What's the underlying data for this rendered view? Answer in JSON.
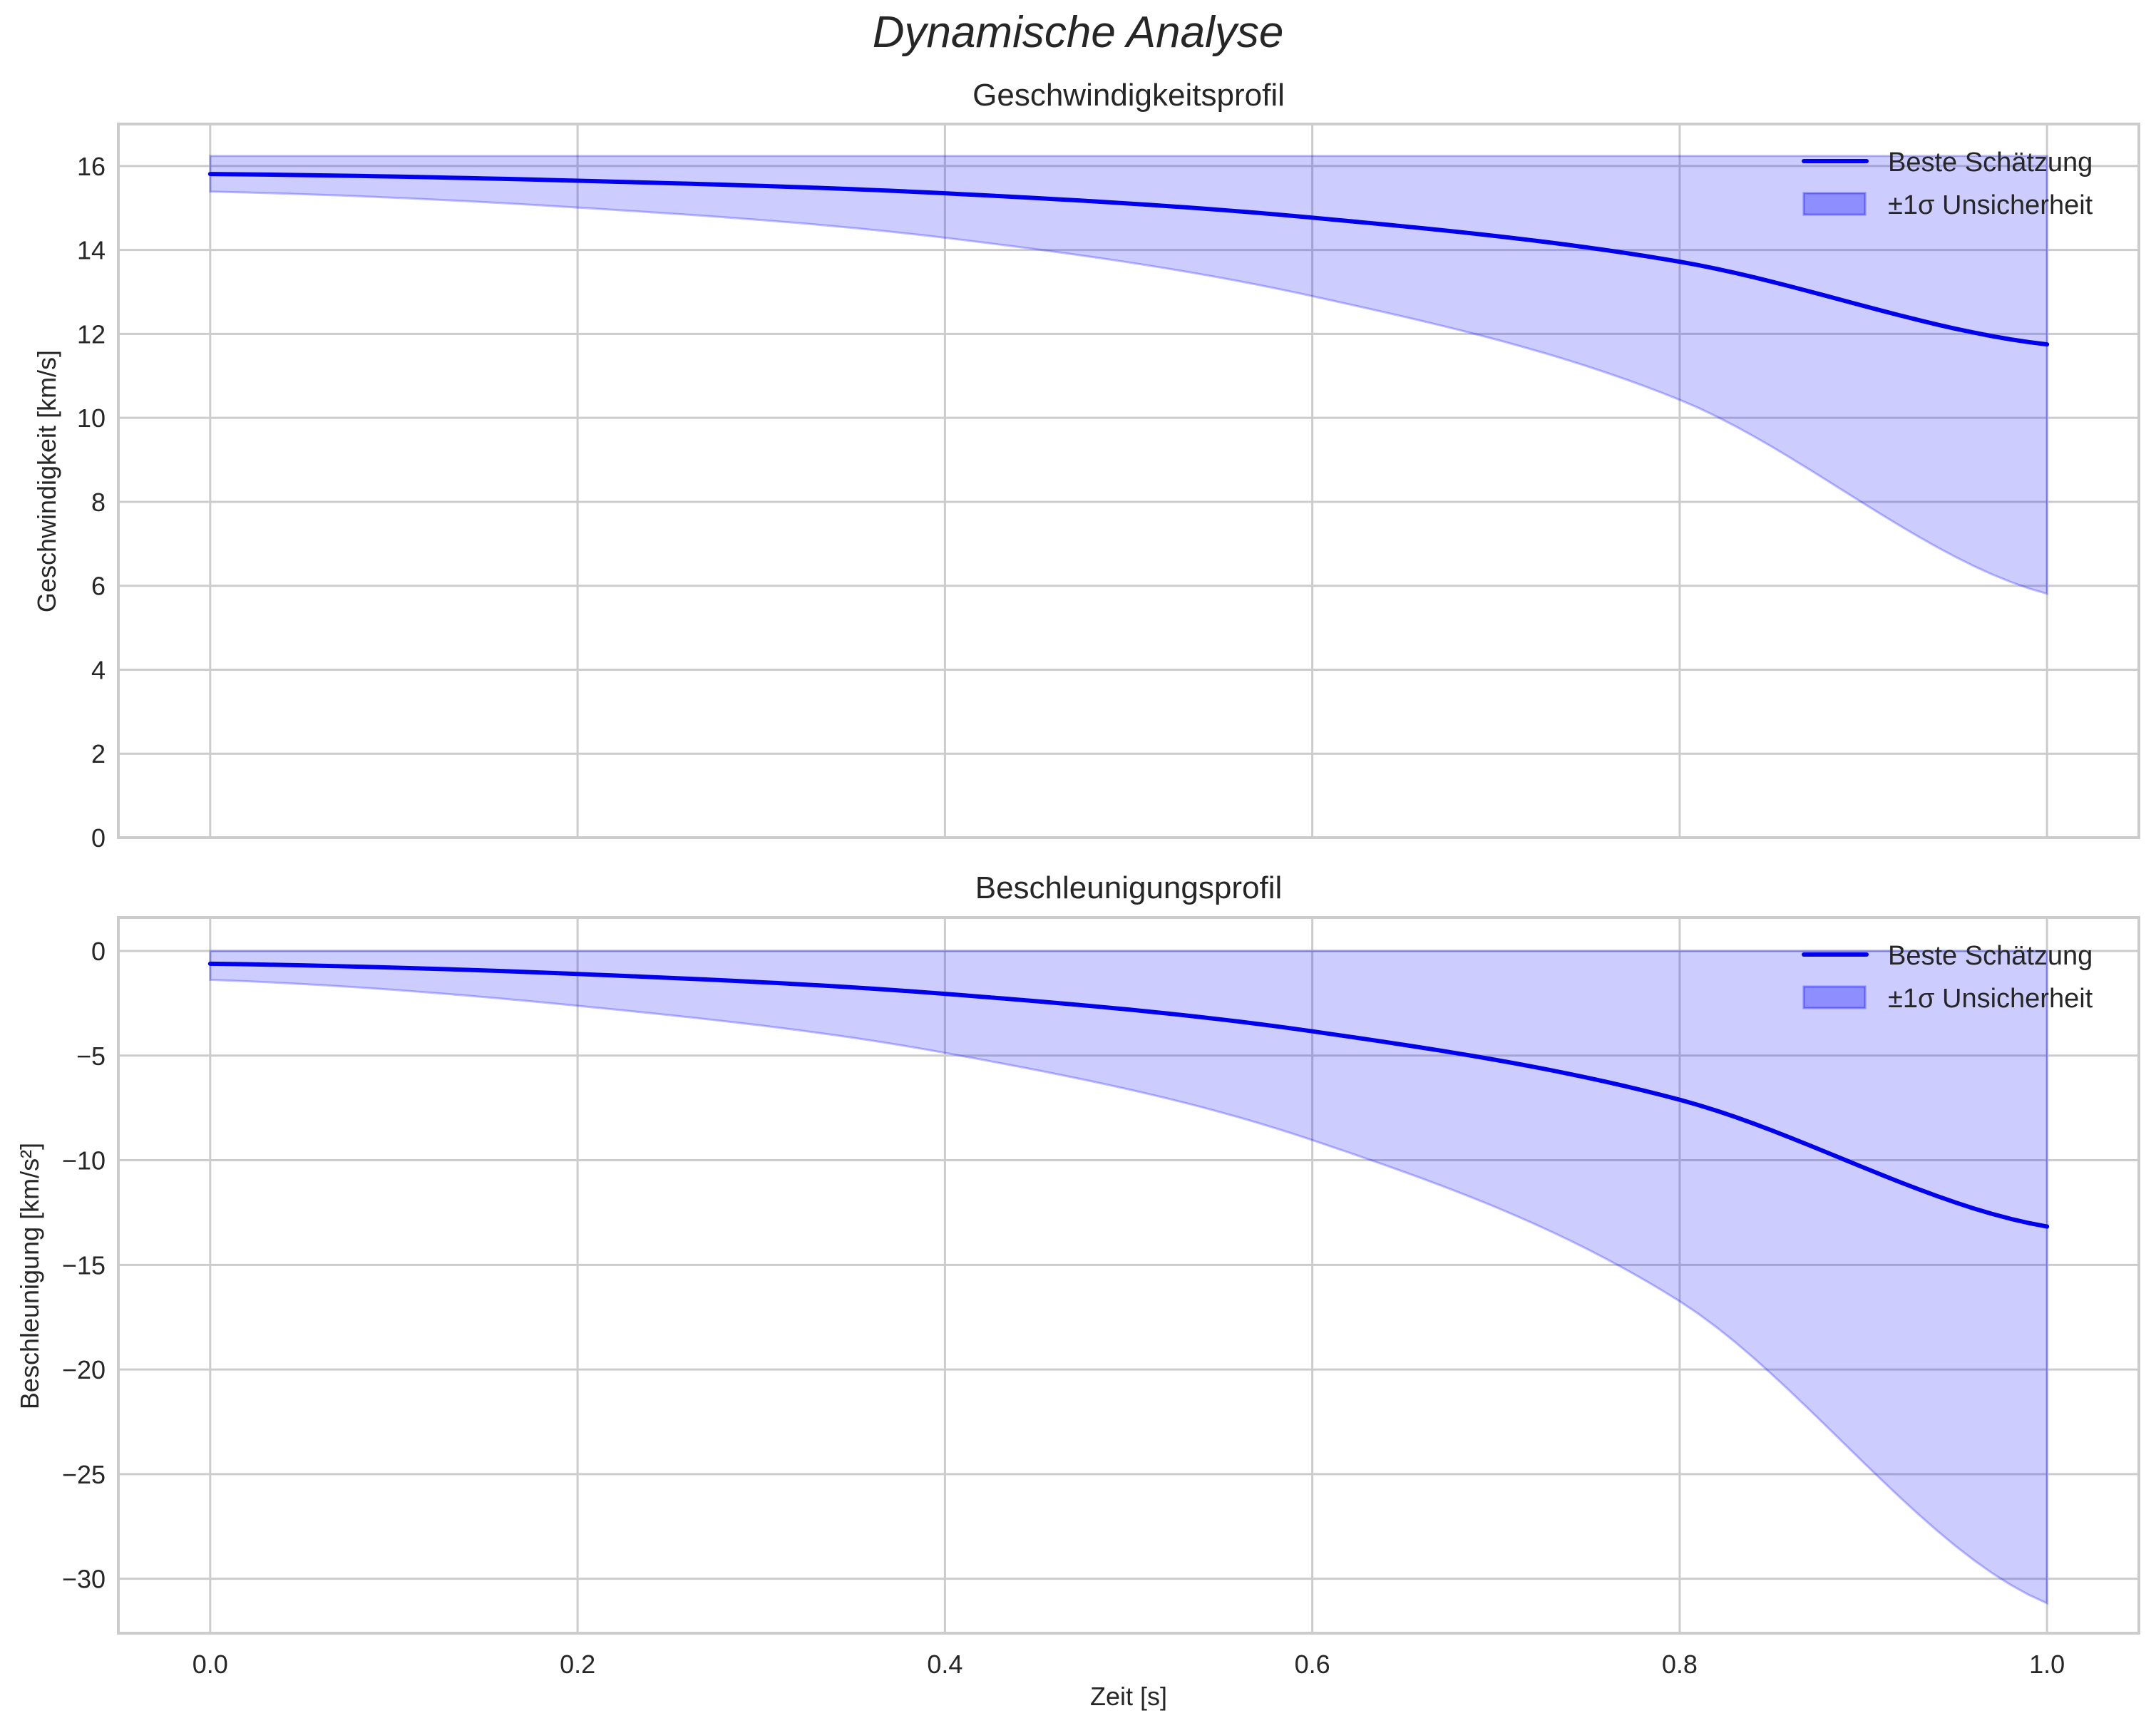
{
  "figure": {
    "suptitle": "Dynamische Analyse",
    "xlabel": "Zeit [s]",
    "colors": {
      "line": "#0000ee",
      "band_fill": "#0000ff",
      "band_alpha": 0.2,
      "grid": "#cccccc",
      "text": "#262626"
    }
  },
  "chart_data": [
    {
      "type": "line",
      "title": "Geschwindigkeitsprofil",
      "xlabel": "",
      "ylabel": "Geschwindigkeit [km/s]",
      "xlim": [
        -0.05,
        1.05
      ],
      "ylim": [
        0,
        17
      ],
      "xticks": [
        "0.0",
        "0.2",
        "0.4",
        "0.6",
        "0.8",
        "1.0"
      ],
      "yticks": [
        "0",
        "2",
        "4",
        "6",
        "8",
        "10",
        "12",
        "14",
        "16"
      ],
      "ytick_values": [
        0,
        2,
        4,
        6,
        8,
        10,
        12,
        14,
        16
      ],
      "grid": true,
      "legend": {
        "position": "upper right",
        "entries": [
          "Beste Schätzung",
          "±1σ Unsicherheit"
        ]
      },
      "x": [
        0.0,
        0.2,
        0.4,
        0.6,
        0.8,
        1.0
      ],
      "series": [
        {
          "name": "Beste Schätzung",
          "kind": "line",
          "values": [
            15.81,
            15.65,
            15.35,
            14.77,
            13.72,
            11.75
          ]
        },
        {
          "name": "±1σ Unsicherheit",
          "kind": "band",
          "lower": [
            15.39,
            15.01,
            14.29,
            12.9,
            10.43,
            5.81
          ],
          "upper": [
            16.24,
            16.24,
            16.24,
            16.24,
            16.24,
            16.24
          ]
        }
      ]
    },
    {
      "type": "line",
      "title": "Beschleunigungsprofil",
      "xlabel": "Zeit [s]",
      "ylabel": "Beschleunigung [km/s²]",
      "xlim": [
        -0.05,
        1.05
      ],
      "ylim": [
        -32.6,
        1.6
      ],
      "xticks": [
        "0.0",
        "0.2",
        "0.4",
        "0.6",
        "0.8",
        "1.0"
      ],
      "yticks": [
        "0",
        "−5",
        "−10",
        "−15",
        "−20",
        "−25",
        "−30"
      ],
      "ytick_values": [
        0,
        -5,
        -10,
        -15,
        -20,
        -25,
        -30
      ],
      "grid": true,
      "legend": {
        "position": "upper right",
        "entries": [
          "Beste Schätzung",
          "±1σ Unsicherheit"
        ]
      },
      "x": [
        0.0,
        0.2,
        0.4,
        0.6,
        0.8,
        1.0
      ],
      "series": [
        {
          "name": "Beste Schätzung",
          "kind": "line",
          "values": [
            -0.61,
            -1.1,
            -2.05,
            -3.84,
            -7.11,
            -13.17
          ]
        },
        {
          "name": "±1σ Unsicherheit",
          "kind": "band",
          "lower": [
            -1.38,
            -2.62,
            -4.87,
            -9.04,
            -16.74,
            -31.17
          ],
          "upper": [
            0,
            0,
            0,
            0,
            0,
            0
          ]
        }
      ]
    }
  ]
}
